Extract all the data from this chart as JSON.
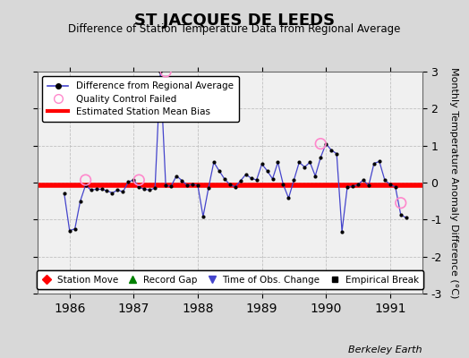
{
  "title": "ST JACQUES DE LEEDS",
  "subtitle": "Difference of Station Temperature Data from Regional Average",
  "ylabel": "Monthly Temperature Anomaly Difference (°C)",
  "ylim": [
    -3,
    3
  ],
  "xlim": [
    1985.5,
    1991.5
  ],
  "bias_value": -0.07,
  "background_color": "#d8d8d8",
  "plot_background": "#f0f0f0",
  "time_series_x": [
    1985.917,
    1986.0,
    1986.083,
    1986.167,
    1986.25,
    1986.333,
    1986.417,
    1986.5,
    1986.583,
    1986.667,
    1986.75,
    1986.833,
    1986.917,
    1987.0,
    1987.083,
    1987.167,
    1987.25,
    1987.333,
    1987.417,
    1987.5,
    1987.583,
    1987.667,
    1987.75,
    1987.833,
    1987.917,
    1988.0,
    1988.083,
    1988.167,
    1988.25,
    1988.333,
    1988.417,
    1988.5,
    1988.583,
    1988.667,
    1988.75,
    1988.833,
    1988.917,
    1989.0,
    1989.083,
    1989.167,
    1989.25,
    1989.333,
    1989.417,
    1989.5,
    1989.583,
    1989.667,
    1989.75,
    1989.833,
    1989.917,
    1990.0,
    1990.083,
    1990.167,
    1990.25,
    1990.333,
    1990.417,
    1990.5,
    1990.583,
    1990.667,
    1990.75,
    1990.833,
    1990.917,
    1991.0,
    1991.083,
    1991.167,
    1991.25
  ],
  "time_series_y": [
    -0.3,
    -1.3,
    -1.25,
    -0.5,
    -0.07,
    -0.2,
    -0.18,
    -0.18,
    -0.22,
    -0.28,
    -0.2,
    -0.25,
    0.02,
    0.07,
    -0.12,
    -0.18,
    -0.2,
    -0.15,
    3.0,
    -0.08,
    -0.1,
    0.18,
    0.06,
    -0.07,
    -0.05,
    -0.07,
    -0.92,
    -0.15,
    0.55,
    0.32,
    0.1,
    -0.05,
    -0.12,
    0.05,
    0.22,
    0.12,
    0.07,
    0.5,
    0.32,
    0.1,
    0.55,
    -0.05,
    -0.42,
    0.07,
    0.55,
    0.42,
    0.55,
    0.18,
    0.68,
    1.05,
    0.88,
    0.78,
    -1.32,
    -0.12,
    -0.1,
    -0.05,
    0.07,
    -0.08,
    0.52,
    0.57,
    0.07,
    -0.05,
    -0.12,
    -0.87,
    -0.95
  ],
  "qc_failed_x": [
    1986.25,
    1987.083,
    1987.5,
    1989.917,
    1991.167
  ],
  "qc_failed_y": [
    0.07,
    0.07,
    3.0,
    1.05,
    -0.55
  ],
  "footnote": "Berkeley Earth"
}
